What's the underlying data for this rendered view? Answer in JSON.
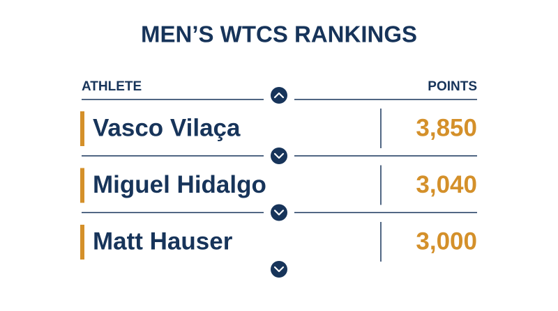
{
  "header": {
    "title": "MEN’S WTCS RANKINGS"
  },
  "table": {
    "columns": [
      "ATHLETE",
      "POINTS"
    ],
    "rows": [
      [
        "Vasco Vilaça",
        "3,850"
      ],
      [
        "Miguel Hidalgo",
        "3,040"
      ],
      [
        "Matt Hauser",
        "3,000"
      ]
    ]
  }
}
